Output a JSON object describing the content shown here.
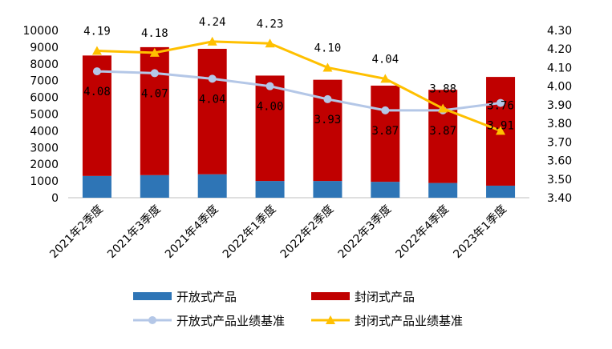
{
  "chart_data": {
    "type": "bar",
    "categories": [
      "2021年2季度",
      "2021年3季度",
      "2021年4季度",
      "2022年1季度",
      "2022年2季度",
      "2022年3季度",
      "2022年4季度",
      "2023年1季度"
    ],
    "series": [
      {
        "name": "开放式产品",
        "kind": "bar",
        "axis": "left",
        "color": "#2e75b6",
        "values": [
          1300,
          1350,
          1400,
          1000,
          1000,
          950,
          880,
          720
        ]
      },
      {
        "name": "封闭式产品",
        "kind": "bar",
        "axis": "left",
        "color": "#c00000",
        "values": [
          7200,
          7650,
          7500,
          6300,
          6050,
          5750,
          5570,
          6500
        ]
      },
      {
        "name": "开放式产品业绩基准",
        "kind": "line",
        "axis": "right",
        "color": "#b4c7e7",
        "values": [
          4.08,
          4.07,
          4.04,
          4.0,
          3.93,
          3.87,
          3.87,
          3.91
        ],
        "labels": [
          "4.08",
          "4.07",
          "4.04",
          "4.00",
          "3.93",
          "3.87",
          "3.87",
          "3.91"
        ]
      },
      {
        "name": "封闭式产品业绩基准",
        "kind": "line",
        "axis": "right",
        "color": "#ffc000",
        "values": [
          4.19,
          4.18,
          4.24,
          4.23,
          4.1,
          4.04,
          3.88,
          3.76
        ],
        "labels": [
          "4.19",
          "4.18",
          "4.24",
          "4.23",
          "4.10",
          "4.04",
          "3.88",
          "3.76"
        ]
      }
    ],
    "y_left": {
      "min": 0,
      "max": 10000,
      "ticks": [
        "0",
        "1000",
        "2000",
        "3000",
        "4000",
        "5000",
        "6000",
        "7000",
        "8000",
        "9000",
        "10000"
      ]
    },
    "y_right": {
      "min": 3.4,
      "max": 4.3,
      "ticks": [
        "3.40",
        "3.50",
        "3.60",
        "3.70",
        "3.80",
        "3.90",
        "4.00",
        "4.10",
        "4.20",
        "4.30"
      ]
    },
    "grid": false,
    "legend_position": "bottom"
  }
}
